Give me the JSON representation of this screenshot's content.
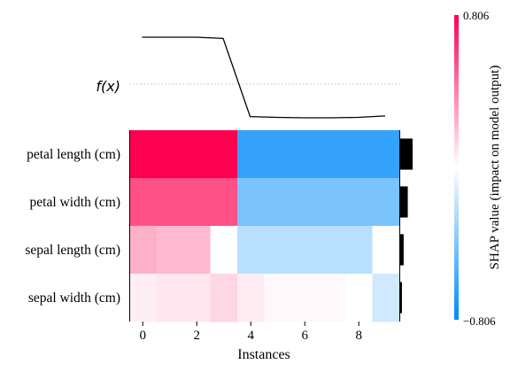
{
  "chart_data": {
    "type": "heatmap",
    "fx_label": "f(x)",
    "features": [
      "petal length (cm)",
      "petal width (cm)",
      "sepal length (cm)",
      "sepal width (cm)"
    ],
    "instances": [
      0,
      1,
      2,
      3,
      4,
      5,
      6,
      7,
      8,
      9
    ],
    "values": [
      [
        0.806,
        0.806,
        0.806,
        0.806,
        -0.64,
        -0.64,
        -0.64,
        -0.64,
        -0.64,
        -0.64
      ],
      [
        0.55,
        0.55,
        0.55,
        0.55,
        -0.42,
        -0.42,
        -0.42,
        -0.42,
        -0.42,
        -0.42
      ],
      [
        0.25,
        0.22,
        0.22,
        0.0,
        -0.22,
        -0.22,
        -0.22,
        -0.22,
        -0.22,
        0.0
      ],
      [
        0.05,
        0.08,
        0.08,
        0.13,
        0.06,
        0.02,
        0.02,
        0.02,
        0.0,
        -0.15
      ]
    ],
    "fx_values": [
      1.9,
      1.9,
      1.9,
      1.85,
      -1.45,
      -1.48,
      -1.5,
      -1.5,
      -1.48,
      -1.42
    ],
    "fx_baseline": 0.0,
    "feature_importance": [
      0.72,
      0.44,
      0.2,
      0.1
    ],
    "xlabel": "Instances",
    "xticks": [
      0,
      2,
      4,
      6,
      8
    ],
    "colorbar": {
      "label": "SHAP value (impact on model output)",
      "max_label": "0.806",
      "min_label": "−0.806",
      "vmax": 0.806,
      "vmin": -0.806
    },
    "colors": {
      "positive": "#ff0051",
      "negative": "#008bfb",
      "fx_line": "#000000",
      "baseline": "#999999",
      "bar": "#000000"
    }
  }
}
